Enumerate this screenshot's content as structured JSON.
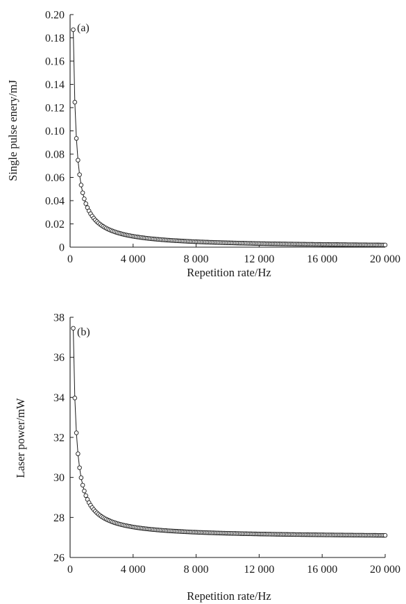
{
  "chart_data": [
    {
      "type": "scatter",
      "panel_label": "(a)",
      "title": "",
      "xlabel": "Repetition rate/Hz",
      "ylabel": "Single pulse enery/mJ",
      "xlim": [
        0,
        20000
      ],
      "ylim": [
        0,
        0.2
      ],
      "xticks": [
        0,
        4000,
        8000,
        12000,
        16000,
        20000
      ],
      "xtick_labels": [
        "0",
        "4 000",
        "8 000",
        "12 000",
        "16 000",
        "20 000"
      ],
      "yticks": [
        0,
        0.02,
        0.04,
        0.06,
        0.08,
        0.1,
        0.12,
        0.14,
        0.16,
        0.18,
        0.2
      ],
      "ytick_labels": [
        "0",
        "0.02",
        "0.04",
        "0.06",
        "0.08",
        "0.10",
        "0.12",
        "0.14",
        "0.16",
        "0.18",
        "0.20"
      ],
      "grid": false,
      "legend": "none",
      "marker": "open-circle",
      "connected": true,
      "series": [
        {
          "x_start": 200,
          "x_step": 100,
          "x_end": 20000,
          "model": "y = a / x^p",
          "a": 37.4,
          "p": 1.0,
          "anchor_points": [
            [
              200,
              0.187
            ],
            [
              300,
              0.109
            ],
            [
              400,
              0.077
            ],
            [
              500,
              0.06
            ],
            [
              600,
              0.049
            ],
            [
              700,
              0.042
            ],
            [
              800,
              0.036
            ],
            [
              900,
              0.032
            ],
            [
              1000,
              0.028
            ],
            [
              2000,
              0.0138
            ],
            [
              4000,
              0.0068
            ],
            [
              8000,
              0.0034
            ],
            [
              12000,
              0.0023
            ],
            [
              16000,
              0.0017
            ],
            [
              20000,
              0.0013
            ]
          ]
        }
      ]
    },
    {
      "type": "scatter",
      "panel_label": "(b)",
      "title": "",
      "xlabel": "Repetition rate/Hz",
      "ylabel": "Laser power/mW",
      "xlim": [
        0,
        20000
      ],
      "ylim": [
        26,
        38
      ],
      "xticks": [
        0,
        4000,
        8000,
        12000,
        16000,
        20000
      ],
      "xtick_labels": [
        "0",
        "4 000",
        "8 000",
        "12 000",
        "16 000",
        "20 000"
      ],
      "yticks": [
        26,
        28,
        30,
        32,
        34,
        36,
        38
      ],
      "ytick_labels": [
        "26",
        "28",
        "30",
        "32",
        "34",
        "36",
        "38"
      ],
      "grid": false,
      "legend": "none",
      "marker": "open-circle",
      "connected": true,
      "series": [
        {
          "x_start": 200,
          "x_step": 100,
          "x_end": 20000,
          "model": "y = c + a / x",
          "c": 27.0,
          "a": 2090,
          "anchor_points": [
            [
              200,
              37.45
            ],
            [
              300,
              32.8
            ],
            [
              400,
              31.05
            ],
            [
              500,
              30.1
            ],
            [
              600,
              29.5
            ],
            [
              700,
              29.1
            ],
            [
              800,
              28.75
            ],
            [
              1000,
              28.3
            ],
            [
              2000,
              27.7
            ],
            [
              4000,
              27.4
            ],
            [
              8000,
              27.2
            ],
            [
              12000,
              27.15
            ],
            [
              16000,
              27.1
            ],
            [
              20000,
              27.05
            ]
          ]
        }
      ]
    }
  ]
}
